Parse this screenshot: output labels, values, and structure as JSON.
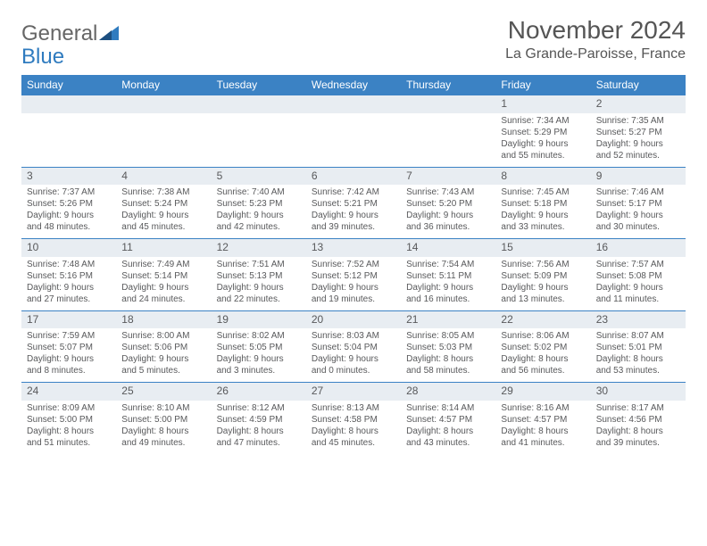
{
  "logo": {
    "text1": "General",
    "text2": "Blue"
  },
  "title": "November 2024",
  "location": "La Grande-Paroisse, France",
  "colors": {
    "header_bg": "#3b82c4",
    "header_fg": "#ffffff",
    "daynum_bg": "#e8edf2",
    "text": "#58595b",
    "border": "#3b82c4"
  },
  "weekdays": [
    "Sunday",
    "Monday",
    "Tuesday",
    "Wednesday",
    "Thursday",
    "Friday",
    "Saturday"
  ],
  "weeks": [
    [
      null,
      null,
      null,
      null,
      null,
      {
        "n": "1",
        "sr": "7:34 AM",
        "ss": "5:29 PM",
        "dl": "9 hours and 55 minutes."
      },
      {
        "n": "2",
        "sr": "7:35 AM",
        "ss": "5:27 PM",
        "dl": "9 hours and 52 minutes."
      }
    ],
    [
      {
        "n": "3",
        "sr": "7:37 AM",
        "ss": "5:26 PM",
        "dl": "9 hours and 48 minutes."
      },
      {
        "n": "4",
        "sr": "7:38 AM",
        "ss": "5:24 PM",
        "dl": "9 hours and 45 minutes."
      },
      {
        "n": "5",
        "sr": "7:40 AM",
        "ss": "5:23 PM",
        "dl": "9 hours and 42 minutes."
      },
      {
        "n": "6",
        "sr": "7:42 AM",
        "ss": "5:21 PM",
        "dl": "9 hours and 39 minutes."
      },
      {
        "n": "7",
        "sr": "7:43 AM",
        "ss": "5:20 PM",
        "dl": "9 hours and 36 minutes."
      },
      {
        "n": "8",
        "sr": "7:45 AM",
        "ss": "5:18 PM",
        "dl": "9 hours and 33 minutes."
      },
      {
        "n": "9",
        "sr": "7:46 AM",
        "ss": "5:17 PM",
        "dl": "9 hours and 30 minutes."
      }
    ],
    [
      {
        "n": "10",
        "sr": "7:48 AM",
        "ss": "5:16 PM",
        "dl": "9 hours and 27 minutes."
      },
      {
        "n": "11",
        "sr": "7:49 AM",
        "ss": "5:14 PM",
        "dl": "9 hours and 24 minutes."
      },
      {
        "n": "12",
        "sr": "7:51 AM",
        "ss": "5:13 PM",
        "dl": "9 hours and 22 minutes."
      },
      {
        "n": "13",
        "sr": "7:52 AM",
        "ss": "5:12 PM",
        "dl": "9 hours and 19 minutes."
      },
      {
        "n": "14",
        "sr": "7:54 AM",
        "ss": "5:11 PM",
        "dl": "9 hours and 16 minutes."
      },
      {
        "n": "15",
        "sr": "7:56 AM",
        "ss": "5:09 PM",
        "dl": "9 hours and 13 minutes."
      },
      {
        "n": "16",
        "sr": "7:57 AM",
        "ss": "5:08 PM",
        "dl": "9 hours and 11 minutes."
      }
    ],
    [
      {
        "n": "17",
        "sr": "7:59 AM",
        "ss": "5:07 PM",
        "dl": "9 hours and 8 minutes."
      },
      {
        "n": "18",
        "sr": "8:00 AM",
        "ss": "5:06 PM",
        "dl": "9 hours and 5 minutes."
      },
      {
        "n": "19",
        "sr": "8:02 AM",
        "ss": "5:05 PM",
        "dl": "9 hours and 3 minutes."
      },
      {
        "n": "20",
        "sr": "8:03 AM",
        "ss": "5:04 PM",
        "dl": "9 hours and 0 minutes."
      },
      {
        "n": "21",
        "sr": "8:05 AM",
        "ss": "5:03 PM",
        "dl": "8 hours and 58 minutes."
      },
      {
        "n": "22",
        "sr": "8:06 AM",
        "ss": "5:02 PM",
        "dl": "8 hours and 56 minutes."
      },
      {
        "n": "23",
        "sr": "8:07 AM",
        "ss": "5:01 PM",
        "dl": "8 hours and 53 minutes."
      }
    ],
    [
      {
        "n": "24",
        "sr": "8:09 AM",
        "ss": "5:00 PM",
        "dl": "8 hours and 51 minutes."
      },
      {
        "n": "25",
        "sr": "8:10 AM",
        "ss": "5:00 PM",
        "dl": "8 hours and 49 minutes."
      },
      {
        "n": "26",
        "sr": "8:12 AM",
        "ss": "4:59 PM",
        "dl": "8 hours and 47 minutes."
      },
      {
        "n": "27",
        "sr": "8:13 AM",
        "ss": "4:58 PM",
        "dl": "8 hours and 45 minutes."
      },
      {
        "n": "28",
        "sr": "8:14 AM",
        "ss": "4:57 PM",
        "dl": "8 hours and 43 minutes."
      },
      {
        "n": "29",
        "sr": "8:16 AM",
        "ss": "4:57 PM",
        "dl": "8 hours and 41 minutes."
      },
      {
        "n": "30",
        "sr": "8:17 AM",
        "ss": "4:56 PM",
        "dl": "8 hours and 39 minutes."
      }
    ]
  ],
  "labels": {
    "sunrise": "Sunrise:",
    "sunset": "Sunset:",
    "daylight": "Daylight:"
  }
}
